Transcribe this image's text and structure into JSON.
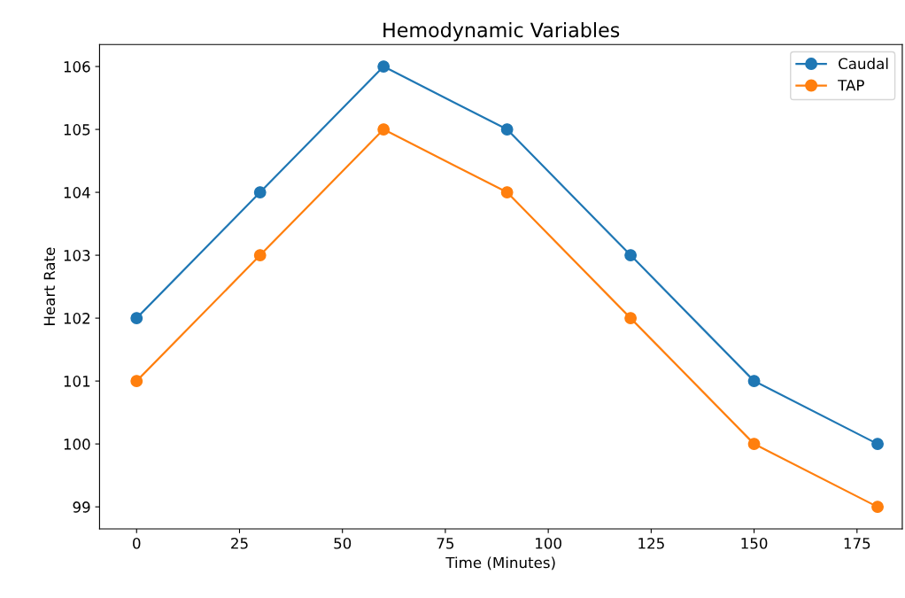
{
  "chart_data": {
    "type": "line",
    "title": "Hemodynamic Variables",
    "xlabel": "Time (Minutes)",
    "ylabel": "Heart Rate",
    "x": [
      0,
      30,
      60,
      90,
      120,
      150,
      180
    ],
    "series": [
      {
        "name": "Caudal",
        "color": "#1f77b4",
        "values": [
          102,
          104,
          106,
          105,
          103,
          101,
          100
        ]
      },
      {
        "name": "TAP",
        "color": "#ff7f0e",
        "values": [
          101,
          103,
          105,
          104,
          102,
          100,
          99
        ]
      }
    ],
    "xlim": [
      -9,
      186
    ],
    "xticks": [
      0,
      25,
      50,
      75,
      100,
      125,
      150,
      175
    ],
    "ylim": [
      98.65,
      106.35
    ],
    "yticks": [
      99,
      100,
      101,
      102,
      103,
      104,
      105,
      106
    ],
    "grid": false,
    "legend": "top right",
    "marker": "circle",
    "line_style": "solid"
  }
}
